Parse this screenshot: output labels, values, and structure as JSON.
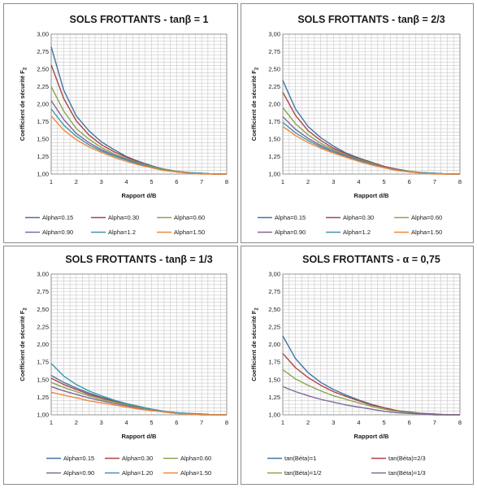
{
  "panels": [
    {
      "title": "SOLS FROTTANTS - tanβ = 1",
      "ylabel": "Coefficient de sécurité F",
      "ylabel_sub": "2",
      "xlabel": "Rapport  d/B"
    },
    {
      "title": "SOLS FROTTANTS - tanβ = 2/3",
      "ylabel": "Coefficient de sécurité F",
      "ylabel_sub": "2",
      "xlabel": "Rapport  d/B"
    },
    {
      "title": "SOLS FROTTANTS - tanβ = 1/3",
      "ylabel": "Coefficient de sécurité F",
      "ylabel_sub": "2",
      "xlabel": "Rapport  d/B"
    },
    {
      "title": "SOLS FROTTANTS - α = 0,75",
      "ylabel": "Coefficient de sécurité F",
      "ylabel_sub": "2",
      "xlabel": "Rapport  d/B"
    }
  ],
  "chart_data": [
    {
      "type": "line",
      "title": "SOLS FROTTANTS - tanβ = 1",
      "xlabel": "Rapport  d/B",
      "ylabel": "Coefficient de sécurité F2",
      "x": [
        1,
        1.5,
        2,
        2.5,
        3,
        3.5,
        4,
        4.5,
        5,
        5.5,
        6,
        6.5,
        7,
        7.5,
        8
      ],
      "xlim": [
        1,
        8
      ],
      "ylim": [
        1.0,
        3.0
      ],
      "xticks": [
        "1",
        "2",
        "3",
        "4",
        "5",
        "6",
        "7",
        "8"
      ],
      "yticks": [
        "1,00",
        "1,25",
        "1,50",
        "1,75",
        "2,00",
        "2,25",
        "2,50",
        "2,75",
        "3,00"
      ],
      "grid": true,
      "legend_position": "bottom",
      "series": [
        {
          "name": "Alpha=0.15",
          "color": "#4572a7",
          "values": [
            2.82,
            2.2,
            1.83,
            1.62,
            1.46,
            1.35,
            1.25,
            1.18,
            1.12,
            1.07,
            1.04,
            1.02,
            1.01,
            1.0,
            1.0
          ]
        },
        {
          "name": "Alpha=0.30",
          "color": "#aa4643",
          "values": [
            2.56,
            2.08,
            1.76,
            1.56,
            1.42,
            1.32,
            1.24,
            1.17,
            1.11,
            1.07,
            1.04,
            1.02,
            1.01,
            1.0,
            1.0
          ]
        },
        {
          "name": "Alpha=0.60",
          "color": "#89a54e",
          "values": [
            2.25,
            1.9,
            1.65,
            1.5,
            1.38,
            1.29,
            1.22,
            1.16,
            1.11,
            1.07,
            1.04,
            1.02,
            1.01,
            1.0,
            1.0
          ]
        },
        {
          "name": "Alpha=0.90",
          "color": "#80699b",
          "values": [
            2.05,
            1.78,
            1.58,
            1.45,
            1.35,
            1.27,
            1.21,
            1.15,
            1.1,
            1.06,
            1.03,
            1.02,
            1.01,
            1.0,
            1.0
          ]
        },
        {
          "name": "Alpha=1.2",
          "color": "#3d96ae",
          "values": [
            1.93,
            1.7,
            1.54,
            1.42,
            1.33,
            1.26,
            1.2,
            1.14,
            1.1,
            1.06,
            1.03,
            1.02,
            1.01,
            1.0,
            1.0
          ]
        },
        {
          "name": "Alpha=1.50",
          "color": "#f0883e",
          "values": [
            1.83,
            1.63,
            1.49,
            1.39,
            1.31,
            1.24,
            1.18,
            1.13,
            1.09,
            1.05,
            1.03,
            1.01,
            1.0,
            1.0,
            1.0
          ]
        }
      ]
    },
    {
      "type": "line",
      "title": "SOLS FROTTANTS - tanβ = 2/3",
      "xlabel": "Rapport  d/B",
      "ylabel": "Coefficient de sécurité F2",
      "x": [
        1,
        1.5,
        2,
        2.5,
        3,
        3.5,
        4,
        4.5,
        5,
        5.5,
        6,
        6.5,
        7,
        7.5,
        8
      ],
      "xlim": [
        1,
        8
      ],
      "ylim": [
        1.0,
        3.0
      ],
      "xticks": [
        "1",
        "2",
        "3",
        "4",
        "5",
        "6",
        "7",
        "8"
      ],
      "yticks": [
        "1,00",
        "1,25",
        "1,50",
        "1,75",
        "2,00",
        "2,25",
        "2,50",
        "2,75",
        "3,00"
      ],
      "grid": true,
      "legend_position": "bottom",
      "series": [
        {
          "name": "Alpha=0.15",
          "color": "#4572a7",
          "values": [
            2.34,
            1.93,
            1.68,
            1.52,
            1.4,
            1.3,
            1.23,
            1.17,
            1.11,
            1.07,
            1.04,
            1.02,
            1.01,
            1.0,
            1.0
          ]
        },
        {
          "name": "Alpha=0.30",
          "color": "#aa4643",
          "values": [
            2.17,
            1.84,
            1.62,
            1.48,
            1.37,
            1.29,
            1.22,
            1.16,
            1.11,
            1.07,
            1.04,
            1.02,
            1.01,
            1.0,
            1.0
          ]
        },
        {
          "name": "Alpha=0.60",
          "color": "#89a54e",
          "values": [
            1.95,
            1.72,
            1.56,
            1.44,
            1.35,
            1.27,
            1.21,
            1.15,
            1.1,
            1.06,
            1.04,
            1.02,
            1.01,
            1.0,
            1.0
          ]
        },
        {
          "name": "Alpha=0.90",
          "color": "#80699b",
          "values": [
            1.82,
            1.64,
            1.51,
            1.41,
            1.33,
            1.26,
            1.2,
            1.14,
            1.1,
            1.06,
            1.03,
            1.02,
            1.01,
            1.0,
            1.0
          ]
        },
        {
          "name": "Alpha=1.2",
          "color": "#3d96ae",
          "values": [
            1.74,
            1.59,
            1.48,
            1.39,
            1.31,
            1.25,
            1.19,
            1.14,
            1.09,
            1.06,
            1.03,
            1.02,
            1.01,
            1.0,
            1.0
          ]
        },
        {
          "name": "Alpha=1.50",
          "color": "#f0883e",
          "values": [
            1.68,
            1.55,
            1.45,
            1.37,
            1.3,
            1.24,
            1.18,
            1.13,
            1.09,
            1.05,
            1.03,
            1.01,
            1.0,
            1.0,
            1.0
          ]
        }
      ]
    },
    {
      "type": "line",
      "title": "SOLS FROTTANTS - tanβ = 1/3",
      "xlabel": "Rapport  d/B",
      "ylabel": "Coefficient de sécurité F2",
      "x": [
        1,
        1.5,
        2,
        2.5,
        3,
        3.5,
        4,
        4.5,
        5,
        5.5,
        6,
        6.5,
        7,
        7.5,
        8
      ],
      "xlim": [
        1,
        8
      ],
      "ylim": [
        1.0,
        3.0
      ],
      "xticks": [
        "1",
        "2",
        "3",
        "4",
        "5",
        "6",
        "7",
        "8"
      ],
      "yticks": [
        "1,00",
        "1,25",
        "1,50",
        "1,75",
        "2,00",
        "2,25",
        "2,50",
        "2,75",
        "3,00"
      ],
      "grid": true,
      "legend_position": "bottom",
      "series": [
        {
          "name": "Alpha=0.15",
          "color": "#4572a7",
          "values": [
            1.56,
            1.46,
            1.38,
            1.31,
            1.25,
            1.2,
            1.15,
            1.11,
            1.08,
            1.05,
            1.03,
            1.02,
            1.01,
            1.0,
            1.0
          ]
        },
        {
          "name": "Alpha=0.30",
          "color": "#aa4643",
          "values": [
            1.52,
            1.43,
            1.36,
            1.29,
            1.24,
            1.19,
            1.15,
            1.11,
            1.07,
            1.05,
            1.03,
            1.01,
            1.01,
            1.0,
            1.0
          ]
        },
        {
          "name": "Alpha=0.60",
          "color": "#89a54e",
          "values": [
            1.46,
            1.39,
            1.33,
            1.27,
            1.22,
            1.18,
            1.14,
            1.1,
            1.07,
            1.04,
            1.02,
            1.01,
            1.0,
            1.0,
            1.0
          ]
        },
        {
          "name": "Alpha=0.90",
          "color": "#80699b",
          "values": [
            1.4,
            1.34,
            1.29,
            1.24,
            1.2,
            1.16,
            1.13,
            1.09,
            1.06,
            1.04,
            1.02,
            1.01,
            1.0,
            1.0,
            1.0
          ]
        },
        {
          "name": "Alpha=1.20",
          "color": "#3d96ae",
          "values": [
            1.73,
            1.55,
            1.43,
            1.34,
            1.27,
            1.21,
            1.16,
            1.12,
            1.08,
            1.05,
            1.03,
            1.02,
            1.01,
            1.0,
            1.0
          ]
        },
        {
          "name": "Alpha=1.50",
          "color": "#f0883e",
          "values": [
            1.32,
            1.28,
            1.24,
            1.2,
            1.17,
            1.14,
            1.11,
            1.08,
            1.06,
            1.04,
            1.02,
            1.01,
            1.0,
            1.0,
            1.0
          ]
        }
      ]
    },
    {
      "type": "line",
      "title": "SOLS FROTTANTS - α = 0,75",
      "xlabel": "Rapport  d/B",
      "ylabel": "Coefficient de sécurité F2",
      "x": [
        1,
        1.5,
        2,
        2.5,
        3,
        3.5,
        4,
        4.5,
        5,
        5.5,
        6,
        6.5,
        7,
        7.5,
        8
      ],
      "xlim": [
        1,
        8
      ],
      "ylim": [
        1.0,
        3.0
      ],
      "xticks": [
        "1",
        "2",
        "3",
        "4",
        "5",
        "6",
        "7",
        "8"
      ],
      "yticks": [
        "1,00",
        "1,25",
        "1,50",
        "1,75",
        "2,00",
        "2,25",
        "2,50",
        "2,75",
        "3,00"
      ],
      "grid": true,
      "legend_position": "bottom",
      "series": [
        {
          "name": "tan(Béta)=1",
          "color": "#4572a7",
          "values": [
            2.12,
            1.8,
            1.6,
            1.46,
            1.36,
            1.28,
            1.21,
            1.15,
            1.1,
            1.06,
            1.04,
            1.02,
            1.01,
            1.0,
            1.0
          ]
        },
        {
          "name": "tan(Béta)=2/3",
          "color": "#aa4643",
          "values": [
            1.87,
            1.67,
            1.53,
            1.42,
            1.33,
            1.26,
            1.2,
            1.14,
            1.1,
            1.06,
            1.03,
            1.02,
            1.01,
            1.0,
            1.0
          ]
        },
        {
          "name": "tan(Béta)=1/2",
          "color": "#89a54e",
          "values": [
            1.64,
            1.51,
            1.42,
            1.34,
            1.27,
            1.22,
            1.17,
            1.12,
            1.08,
            1.05,
            1.03,
            1.01,
            1.0,
            1.0,
            1.0
          ]
        },
        {
          "name": "tan(Béta)=1/3",
          "color": "#80699b",
          "values": [
            1.4,
            1.33,
            1.27,
            1.22,
            1.18,
            1.14,
            1.11,
            1.08,
            1.05,
            1.03,
            1.02,
            1.01,
            1.0,
            1.0,
            1.0
          ]
        }
      ]
    }
  ]
}
